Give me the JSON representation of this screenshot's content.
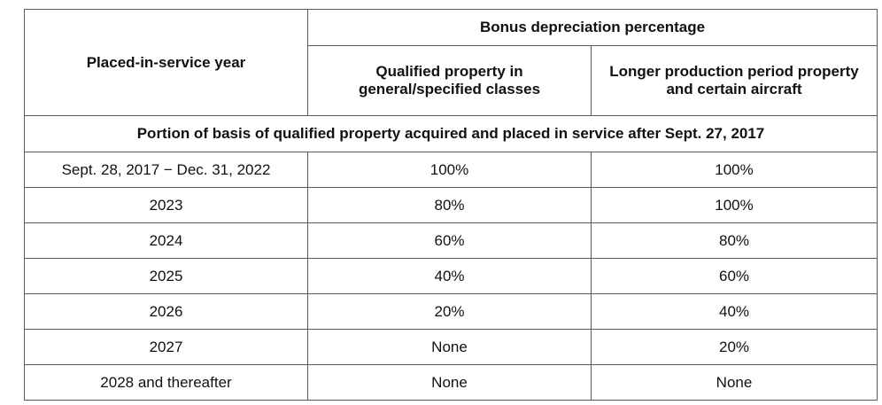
{
  "table": {
    "col1_header": "Placed-in-service year",
    "group_header": "Bonus depreciation percentage",
    "col2_header": "Qualified property in general/specified classes",
    "col3_header": "Longer production period property and certain aircraft",
    "section_header": "Portion of basis of qualified property  acquired and placed in service after Sept. 27, 2017",
    "rows": [
      {
        "year": "Sept. 28, 2017 − Dec. 31, 2022",
        "general": "100%",
        "longer": "100%"
      },
      {
        "year": "2023",
        "general": "80%",
        "longer": "100%"
      },
      {
        "year": "2024",
        "general": "60%",
        "longer": "80%"
      },
      {
        "year": "2025",
        "general": "40%",
        "longer": "60%"
      },
      {
        "year": "2026",
        "general": "20%",
        "longer": "40%"
      },
      {
        "year": "2027",
        "general": "None",
        "longer": "20%"
      },
      {
        "year": "2028 and thereafter",
        "general": "None",
        "longer": "None"
      }
    ]
  }
}
